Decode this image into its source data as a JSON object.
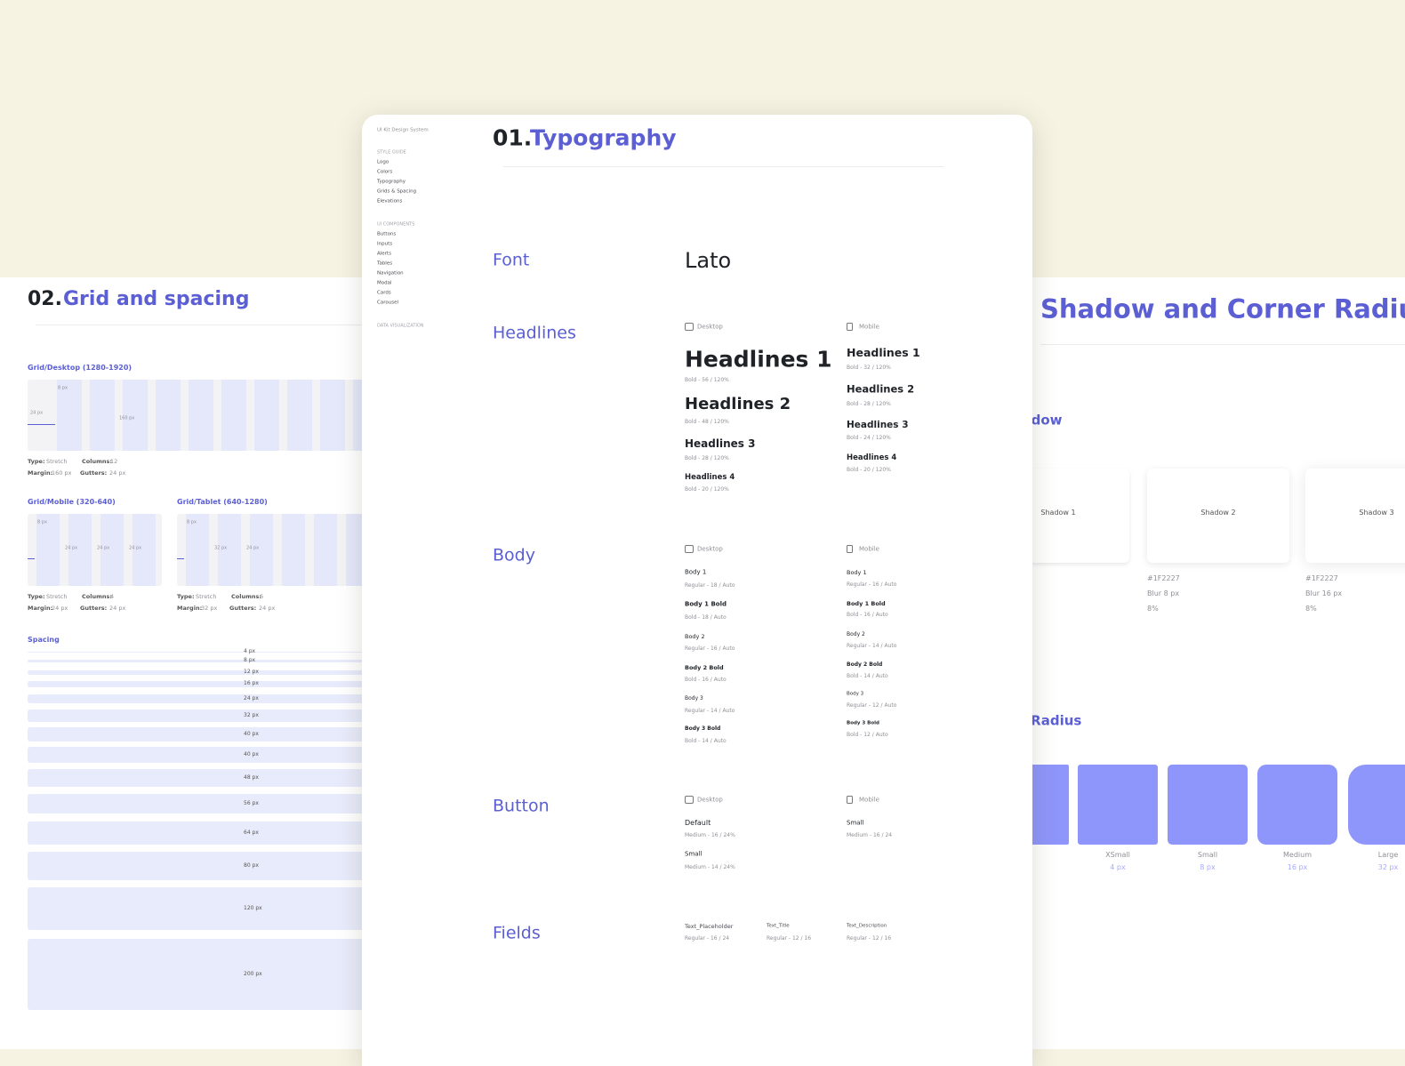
{
  "left_panel": {
    "number": "02.",
    "title": "Grid and spacing",
    "grids": [
      {
        "label": "Grid/Desktop (1280-1920)",
        "type_key": "Type:",
        "type": "Stretch",
        "columns_key": "Columns:",
        "columns": "12",
        "margin_key": "Margin:",
        "margin": "160 px",
        "gutters_key": "Gutters:",
        "gutters": "24 px",
        "annotations": [
          "8 px",
          "24 px",
          "160 px"
        ]
      },
      {
        "label": "Grid/Mobile (320-640)",
        "type_key": "Type:",
        "type": "Stretch",
        "columns_key": "Columns:",
        "columns": "4",
        "margin_key": "Margin:",
        "margin": "24 px",
        "gutters_key": "Gutters:",
        "gutters": "24 px",
        "annotations": [
          "8 px",
          "24 px",
          "24 px",
          "24 px"
        ]
      },
      {
        "label": "Grid/Tablet (640-1280)",
        "type_key": "Type:",
        "type": "Stretch",
        "columns_key": "Columns:",
        "columns": "6",
        "margin_key": "Margin:",
        "margin": "32 px",
        "gutters_key": "Gutters:",
        "gutters": "24 px",
        "annotations": [
          "8 px",
          "32 px",
          "24 px"
        ]
      }
    ],
    "spacing_title": "Spacing",
    "spacing": [
      "4 px",
      "8 px",
      "12 px",
      "16 px",
      "24 px",
      "32 px",
      "40 px",
      "40 px",
      "48 px",
      "56 px",
      "64 px",
      "80 px",
      "120 px",
      "200 px"
    ]
  },
  "center_panel": {
    "sidebar": {
      "title": "UI Kit Design System",
      "groups": [
        {
          "heading": "STYLE GUIDE",
          "items": [
            "Logo",
            "Colors",
            "Typography",
            "Grids & Spacing",
            "Elevations"
          ]
        },
        {
          "heading": "UI COMPONENTS",
          "items": [
            "Buttons",
            "Inputs",
            "Alerts",
            "Tables",
            "Navigation",
            "Modal",
            "Cards",
            "Carousel"
          ]
        },
        {
          "heading": "DATA VISUALIZATION",
          "items": []
        }
      ]
    },
    "number": "01.",
    "title": "Typography",
    "device_labels": {
      "desktop": "Desktop",
      "mobile": "Mobile"
    },
    "font": {
      "label": "Font",
      "value": "Lato"
    },
    "headlines": {
      "label": "Headlines",
      "desktop": [
        {
          "name": "Headlines 1",
          "spec": "Bold - 56 / 120%"
        },
        {
          "name": "Headlines 2",
          "spec": "Bold - 48 / 120%"
        },
        {
          "name": "Headlines 3",
          "spec": "Bold - 28 / 120%"
        },
        {
          "name": "Headlines 4",
          "spec": "Bold - 20 / 120%"
        }
      ],
      "mobile": [
        {
          "name": "Headlines 1",
          "spec": "Bold - 32 / 120%"
        },
        {
          "name": "Headlines 2",
          "spec": "Bold - 28 / 120%"
        },
        {
          "name": "Headlines 3",
          "spec": "Bold - 24 / 120%"
        },
        {
          "name": "Headlines 4",
          "spec": "Bold - 20 / 120%"
        }
      ]
    },
    "body": {
      "label": "Body",
      "desktop": [
        {
          "name": "Body 1",
          "spec": "Regular - 18 / Auto"
        },
        {
          "name": "Body 1 Bold",
          "spec": "Bold - 18 / Auto"
        },
        {
          "name": "Body 2",
          "spec": "Regular - 16 / Auto"
        },
        {
          "name": "Body 2 Bold",
          "spec": "Bold - 16 / Auto"
        },
        {
          "name": "Body 3",
          "spec": "Regular - 14 / Auto"
        },
        {
          "name": "Body 3 Bold",
          "spec": "Bold - 14 / Auto"
        }
      ],
      "mobile": [
        {
          "name": "Body 1",
          "spec": "Regular - 16 / Auto"
        },
        {
          "name": "Body 1 Bold",
          "spec": "Bold - 16 / Auto"
        },
        {
          "name": "Body 2",
          "spec": "Regular - 14 / Auto"
        },
        {
          "name": "Body 2 Bold",
          "spec": "Bold - 14 / Auto"
        },
        {
          "name": "Body 3",
          "spec": "Regular - 12 / Auto"
        },
        {
          "name": "Body 3 Bold",
          "spec": "Bold - 12 / Auto"
        }
      ]
    },
    "button": {
      "label": "Button",
      "desktop": [
        {
          "name": "Default",
          "spec": "Medium - 16 / 24%"
        },
        {
          "name": "Small",
          "spec": "Medium - 14 / 24%"
        }
      ],
      "mobile": [
        {
          "name": "Small",
          "spec": "Medium - 16 / 24"
        }
      ]
    },
    "fields": {
      "label": "Fields",
      "items": [
        {
          "name": "Text_Placeholder",
          "spec": "Regular - 16 / 24"
        },
        {
          "name": "Text_Title",
          "spec": "Regular - 12 / 16"
        },
        {
          "name": "Text_Description",
          "spec": "Regular - 12 / 16"
        }
      ]
    }
  },
  "right_panel": {
    "title": "Shadow and Corner Radius",
    "shadow_title": "Shadow",
    "shadows": [
      {
        "name": "Shadow 1"
      },
      {
        "name": "Shadow 2",
        "color": "#1F2227",
        "blur": "Blur 8 px",
        "opacity": "8%"
      },
      {
        "name": "Shadow 3",
        "color": "#1F2227",
        "blur": "Blur 16 px",
        "opacity": "8%"
      }
    ],
    "radius_title": "Corner Radius",
    "radii": [
      {
        "name": "XSmall",
        "size": "4 px"
      },
      {
        "name": "Small",
        "size": "8 px"
      },
      {
        "name": "Medium",
        "size": "16 px"
      },
      {
        "name": "Large",
        "size": "32 px"
      }
    ]
  }
}
